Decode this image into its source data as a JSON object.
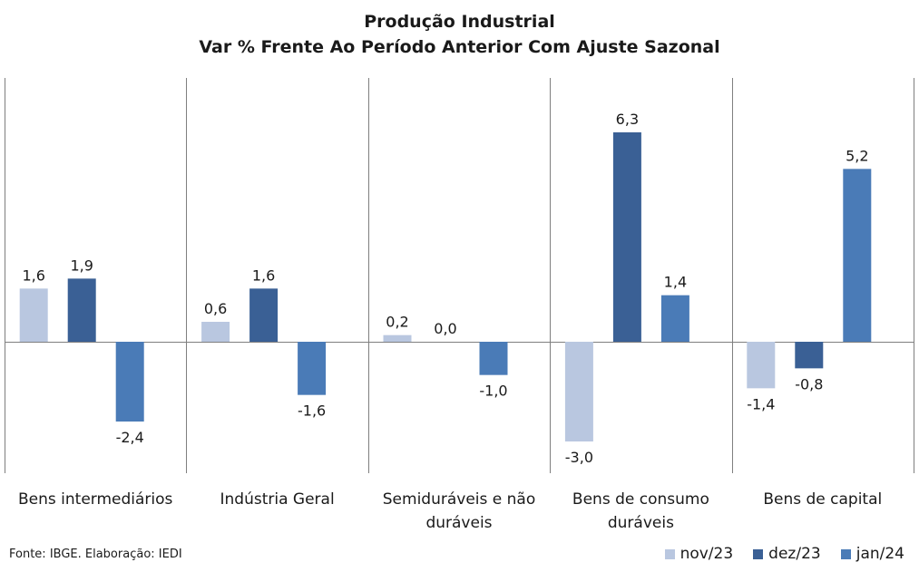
{
  "chart_data": {
    "type": "bar",
    "title": "Produção Industrial",
    "subtitle": "Var % Frente Ao Período Anterior Com Ajuste Sazonal",
    "categories": [
      [
        "Bens intermediários"
      ],
      [
        "Indústria Geral"
      ],
      [
        "Semiduráveis e não",
        "duráveis"
      ],
      [
        "Bens de consumo",
        "duráveis"
      ],
      [
        "Bens de capital"
      ]
    ],
    "series": [
      {
        "name": "nov/23",
        "color": "#b9c7e0",
        "values": [
          1.6,
          0.6,
          0.2,
          -3.0,
          -1.4
        ],
        "labels": [
          "1,6",
          "0,6",
          "0,2",
          "-3,0",
          "-1,4"
        ]
      },
      {
        "name": "dez/23",
        "color": "#3a6095",
        "values": [
          1.9,
          1.6,
          0.0,
          6.3,
          -0.8
        ],
        "labels": [
          "1,9",
          "1,6",
          "0,0",
          "6,3",
          "-0,8"
        ]
      },
      {
        "name": "jan/24",
        "color": "#4a7bb7",
        "values": [
          -2.4,
          -1.6,
          -1.0,
          1.4,
          5.2
        ],
        "labels": [
          "-2,4",
          "-1,6",
          "-1,0",
          "1,4",
          "5,2"
        ]
      }
    ],
    "ylim": [
      -4.0,
      8.0
    ],
    "legend_position": "bottom-right",
    "source": "Fonte: IBGE. Elaboração: IEDI"
  }
}
